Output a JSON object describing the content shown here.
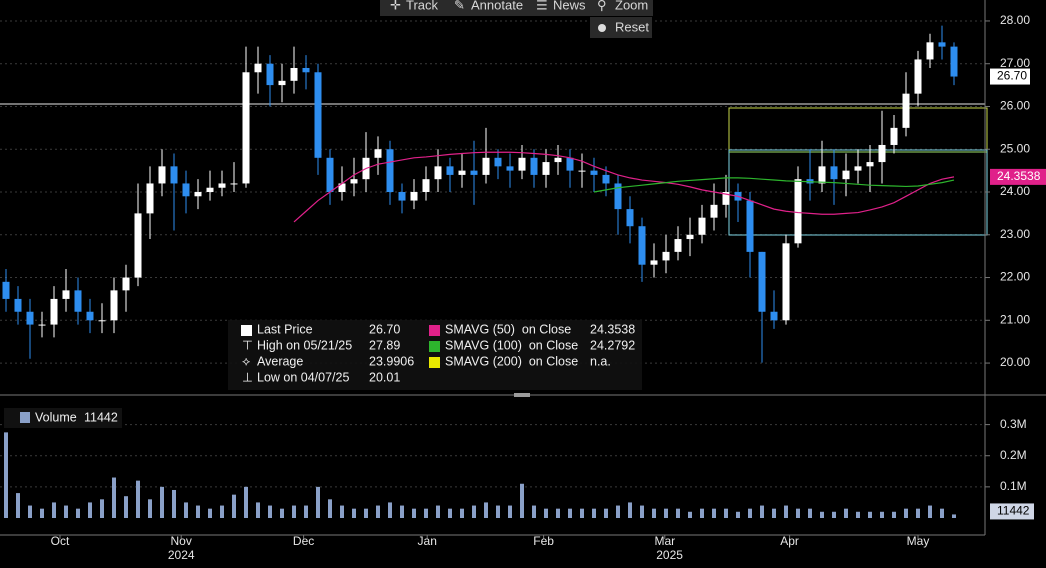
{
  "toolbar": {
    "track": "Track",
    "annotate": "Annotate",
    "news": "News",
    "zoom": "Zoom",
    "reset": "Reset"
  },
  "chart_data": [
    {
      "type": "candlestick",
      "xlim": [
        -0.5,
        79.5
      ],
      "xticks": [
        {
          "value": 4.5,
          "label": "Oct"
        },
        {
          "value": 14.6,
          "label": "Nov"
        },
        {
          "value": 24.8,
          "label": "Dec"
        },
        {
          "value": 35.1,
          "label": "Jan"
        },
        {
          "value": 44.8,
          "label": "Feb"
        },
        {
          "value": 54.9,
          "label": "Mar"
        },
        {
          "value": 65.3,
          "label": "Apr"
        },
        {
          "value": 76,
          "label": "May"
        }
      ],
      "year_labels": [
        {
          "value": 14.6,
          "label": "2024"
        },
        {
          "value": 55.3,
          "label": "2025"
        }
      ],
      "ylim": [
        19.3,
        28.49
      ],
      "yticks": [
        {
          "value": 20,
          "label": "20.00"
        },
        {
          "value": 21,
          "label": "21.00"
        },
        {
          "value": 22,
          "label": "22.00"
        },
        {
          "value": 23,
          "label": "23.00"
        },
        {
          "value": 24,
          "label": "24.00"
        },
        {
          "value": 25,
          "label": "25.00"
        },
        {
          "value": 26,
          "label": "26.00"
        },
        {
          "value": 27,
          "label": "27.00"
        },
        {
          "value": 28,
          "label": "28.00"
        }
      ],
      "grid": true,
      "up_color": "#ffffff",
      "down_color": "#2e8ef0",
      "open": [
        21.9,
        21.5,
        21.2,
        20.9,
        20.9,
        21.5,
        21.7,
        21.2,
        21.0,
        21.0,
        21.7,
        22.0,
        23.5,
        24.2,
        24.6,
        24.2,
        23.9,
        24.0,
        24.1,
        24.2,
        24.2,
        26.8,
        27.0,
        26.5,
        26.6,
        26.9,
        26.8,
        24.8,
        24.0,
        24.2,
        24.3,
        24.8,
        25.0,
        24.0,
        23.8,
        24.0,
        24.3,
        24.6,
        24.4,
        24.5,
        24.4,
        24.8,
        24.6,
        24.5,
        24.8,
        24.4,
        24.7,
        24.8,
        24.5,
        24.5,
        24.4,
        24.2,
        23.6,
        23.2,
        22.3,
        22.4,
        22.6,
        22.9,
        23.0,
        23.4,
        23.7,
        24.0,
        23.8,
        22.6,
        21.2,
        21.0,
        22.8,
        24.3,
        24.2,
        24.6,
        24.3,
        24.5,
        24.6,
        24.7,
        25.1,
        25.5,
        26.3,
        27.1,
        27.5,
        27.4
      ],
      "high": [
        22.2,
        21.8,
        21.5,
        21.2,
        21.8,
        22.2,
        22.0,
        21.5,
        21.4,
        22.0,
        22.3,
        24.2,
        24.6,
        25.0,
        24.9,
        24.5,
        24.3,
        24.5,
        24.5,
        24.7,
        27.4,
        27.4,
        27.2,
        27.0,
        27.4,
        27.2,
        27.0,
        25.0,
        24.6,
        24.8,
        25.4,
        25.3,
        25.2,
        24.2,
        24.3,
        24.6,
        25.0,
        24.8,
        24.9,
        25.2,
        25.5,
        25.0,
        24.9,
        25.1,
        25.0,
        25.0,
        25.1,
        25.0,
        24.9,
        24.8,
        24.6,
        24.4,
        23.9,
        23.4,
        22.8,
        23.0,
        23.2,
        23.4,
        23.7,
        24.2,
        24.4,
        24.2,
        24.0,
        22.6,
        21.7,
        23.0,
        24.6,
        25.0,
        25.2,
        25.0,
        24.9,
        25.0,
        25.1,
        25.9,
        25.8,
        26.8,
        27.3,
        27.7,
        27.89,
        27.5
      ],
      "low": [
        21.2,
        20.9,
        20.1,
        20.6,
        20.6,
        21.2,
        20.9,
        20.7,
        20.7,
        20.7,
        21.2,
        21.8,
        22.9,
        23.9,
        23.1,
        23.5,
        23.6,
        23.8,
        23.9,
        24.0,
        24.1,
        26.3,
        26.0,
        26.1,
        26.3,
        26.4,
        24.4,
        23.7,
        23.8,
        23.9,
        24.0,
        24.4,
        23.7,
        23.5,
        23.6,
        23.8,
        24.0,
        24.0,
        24.1,
        23.7,
        24.2,
        24.3,
        24.1,
        24.3,
        24.1,
        24.1,
        24.4,
        24.1,
        24.1,
        24.0,
        23.9,
        23.0,
        22.8,
        21.9,
        22.0,
        22.1,
        22.4,
        22.5,
        22.8,
        23.1,
        23.4,
        23.3,
        22.0,
        20.01,
        20.8,
        20.9,
        22.7,
        23.8,
        24.0,
        23.7,
        23.9,
        24.2,
        24.0,
        24.2,
        24.9,
        25.3,
        26.0,
        26.9,
        27.1,
        26.5
      ],
      "close": [
        21.5,
        21.2,
        20.9,
        20.9,
        21.5,
        21.7,
        21.2,
        21.0,
        21.0,
        21.7,
        22.0,
        23.5,
        24.2,
        24.6,
        24.2,
        23.9,
        24.0,
        24.1,
        24.2,
        24.2,
        26.8,
        27.0,
        26.5,
        26.6,
        26.9,
        26.8,
        24.8,
        24.0,
        24.2,
        24.3,
        24.8,
        25.0,
        24.0,
        23.8,
        24.0,
        24.3,
        24.6,
        24.4,
        24.5,
        24.4,
        24.8,
        24.6,
        24.5,
        24.8,
        24.4,
        24.7,
        24.8,
        24.5,
        24.5,
        24.4,
        24.2,
        23.6,
        23.2,
        22.3,
        22.4,
        22.6,
        22.9,
        23.0,
        23.4,
        23.7,
        24.0,
        23.8,
        22.6,
        21.2,
        21.0,
        22.8,
        24.3,
        24.2,
        24.6,
        24.3,
        24.5,
        24.6,
        24.7,
        25.1,
        25.5,
        26.3,
        27.1,
        27.5,
        27.4,
        26.7
      ],
      "overlays": [
        {
          "name": "SMAVG (50)  on Close",
          "color": "#e0218a",
          "value_label": "24.3538",
          "values": [
            null,
            null,
            null,
            null,
            null,
            null,
            null,
            null,
            null,
            null,
            null,
            null,
            null,
            null,
            null,
            null,
            null,
            null,
            null,
            null,
            null,
            null,
            null,
            null,
            23.3,
            23.55,
            23.8,
            24.0,
            24.2,
            24.4,
            24.55,
            24.65,
            24.7,
            24.75,
            24.8,
            24.82,
            24.85,
            24.88,
            24.9,
            24.92,
            24.93,
            24.93,
            24.93,
            24.92,
            24.9,
            24.88,
            24.85,
            24.8,
            24.72,
            24.6,
            24.5,
            24.4,
            24.33,
            24.28,
            24.25,
            24.22,
            24.18,
            24.12,
            24.05,
            24.0,
            23.95,
            23.9,
            23.8,
            23.7,
            23.6,
            23.55,
            23.52,
            23.5,
            23.48,
            23.48,
            23.5,
            23.52,
            23.58,
            23.65,
            23.75,
            23.9,
            24.05,
            24.2,
            24.3,
            24.3538
          ]
        },
        {
          "name": "SMAVG (100)  on Close",
          "color": "#2db52d",
          "value_label": "24.2792",
          "values": [
            null,
            null,
            null,
            null,
            null,
            null,
            null,
            null,
            null,
            null,
            null,
            null,
            null,
            null,
            null,
            null,
            null,
            null,
            null,
            null,
            null,
            null,
            null,
            null,
            null,
            null,
            null,
            null,
            null,
            null,
            null,
            null,
            null,
            null,
            null,
            null,
            null,
            null,
            null,
            null,
            null,
            null,
            null,
            null,
            null,
            null,
            null,
            null,
            null,
            24.0,
            24.05,
            24.1,
            24.13,
            24.16,
            24.19,
            24.22,
            24.25,
            24.27,
            24.29,
            24.31,
            24.33,
            24.33,
            24.32,
            24.3,
            24.28,
            24.26,
            24.25,
            24.24,
            24.23,
            24.22,
            24.2,
            24.18,
            24.16,
            24.15,
            24.14,
            24.13,
            24.14,
            24.18,
            24.22,
            24.2792
          ]
        },
        {
          "name": "SMAVG (200)  on Close",
          "color": "#e8e800",
          "value_label": "n.a.",
          "values": []
        }
      ],
      "legend": [
        {
          "name": "Last Price",
          "value": "26.70"
        },
        {
          "name": "High on 05/21/25",
          "value": "27.89"
        },
        {
          "name": "Average",
          "value": "23.9906"
        },
        {
          "name": "Low on 04/07/25",
          "value": "20.01"
        }
      ]
    },
    {
      "type": "bar",
      "xlim": [
        -0.5,
        79.5
      ],
      "ylim": [
        0,
        0.379
      ],
      "yticks": [
        {
          "value": 0.1,
          "label": "0.1M"
        },
        {
          "value": 0.2,
          "label": "0.2M"
        },
        {
          "value": 0.3,
          "label": "0.3M"
        }
      ],
      "color": "#8aa0c8",
      "legend": {
        "name": "Volume",
        "value": "11442"
      },
      "values": [
        0.275,
        0.08,
        0.04,
        0.03,
        0.05,
        0.04,
        0.03,
        0.05,
        0.06,
        0.13,
        0.07,
        0.12,
        0.06,
        0.1,
        0.09,
        0.05,
        0.04,
        0.03,
        0.04,
        0.075,
        0.1,
        0.05,
        0.04,
        0.03,
        0.04,
        0.04,
        0.1,
        0.06,
        0.04,
        0.03,
        0.03,
        0.04,
        0.05,
        0.04,
        0.03,
        0.03,
        0.04,
        0.03,
        0.03,
        0.04,
        0.05,
        0.04,
        0.04,
        0.11,
        0.04,
        0.03,
        0.03,
        0.03,
        0.03,
        0.03,
        0.03,
        0.04,
        0.05,
        0.04,
        0.03,
        0.03,
        0.03,
        0.02,
        0.03,
        0.03,
        0.03,
        0.02,
        0.03,
        0.04,
        0.03,
        0.04,
        0.03,
        0.03,
        0.02,
        0.02,
        0.03,
        0.02,
        0.02,
        0.02,
        0.02,
        0.03,
        0.03,
        0.04,
        0.03,
        0.011442
      ]
    }
  ]
}
